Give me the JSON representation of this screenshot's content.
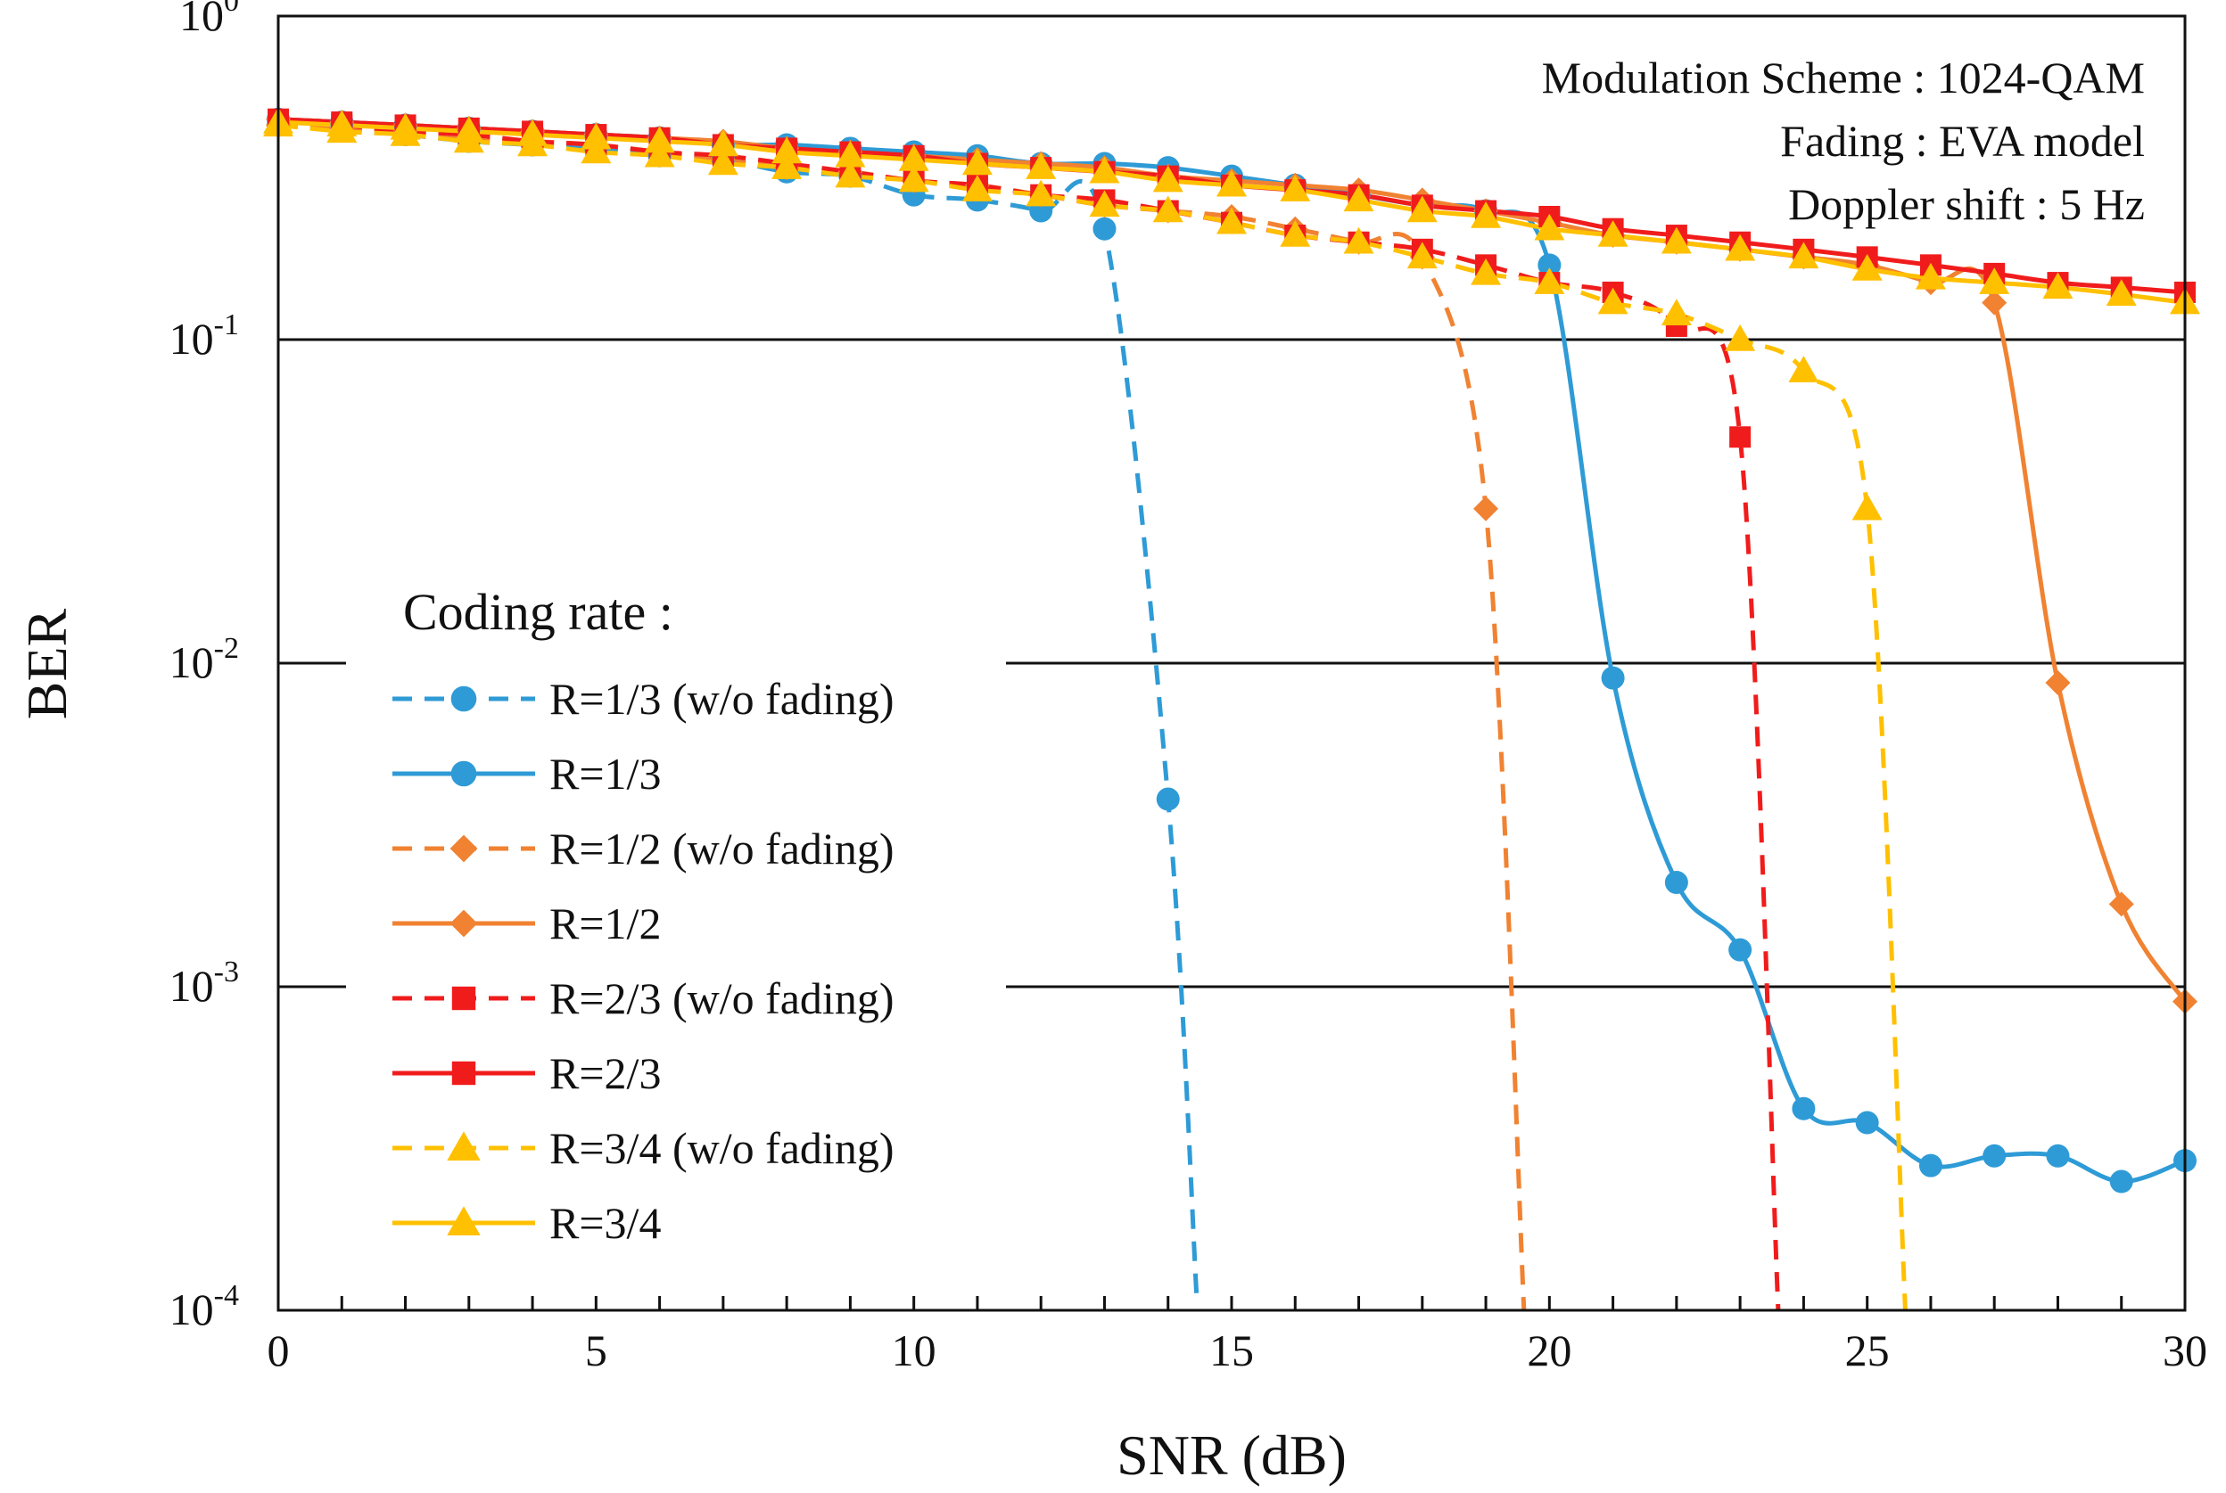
{
  "chart_data": {
    "type": "line",
    "x_scale": "linear",
    "y_scale": "log",
    "xlabel": "SNR (dB)",
    "ylabel": "BER",
    "xlim": [
      0,
      30
    ],
    "ylim": [
      0.0001,
      1
    ],
    "x_ticks": [
      0,
      5,
      10,
      15,
      20,
      25,
      30
    ],
    "y_ticks": [
      {
        "value": 1,
        "base": "10",
        "exp": "0"
      },
      {
        "value": 0.1,
        "base": "10",
        "exp": "-1"
      },
      {
        "value": 0.01,
        "base": "10",
        "exp": "-2"
      },
      {
        "value": 0.001,
        "base": "10",
        "exp": "-3"
      },
      {
        "value": 0.0001,
        "base": "10",
        "exp": "-4"
      }
    ],
    "horizontal_gridlines_at": [
      0.1,
      0.01,
      0.001
    ],
    "annotations": [
      "Modulation Scheme : 1024-QAM",
      "Fading : EVA model",
      "Doppler shift : 5 Hz"
    ],
    "legend": {
      "title": "Coding rate :",
      "placement": "middle-left"
    },
    "series": [
      {
        "name": "R=1/3 (w/o fading)",
        "color": "#2E9BD6",
        "dashed": true,
        "marker": "circle",
        "x": [
          0,
          1,
          2,
          3,
          4,
          5,
          6,
          7,
          8,
          9,
          10,
          11,
          12,
          13,
          14
        ],
        "y": [
          0.46,
          0.45,
          0.43,
          0.41,
          0.4,
          0.39,
          0.37,
          0.36,
          0.33,
          0.32,
          0.28,
          0.27,
          0.25,
          0.22,
          0.0038
        ],
        "tail": [
          14.45,
          0.00011
        ]
      },
      {
        "name": "R=1/3",
        "color": "#2E9BD6",
        "dashed": false,
        "marker": "circle",
        "x": [
          0,
          1,
          2,
          3,
          4,
          5,
          6,
          7,
          8,
          9,
          10,
          11,
          12,
          13,
          14,
          15,
          16,
          17,
          18,
          19,
          20,
          21,
          22,
          23,
          24,
          25,
          26,
          27,
          28,
          29,
          30
        ],
        "y": [
          0.48,
          0.47,
          0.46,
          0.45,
          0.44,
          0.43,
          0.42,
          0.4,
          0.4,
          0.39,
          0.38,
          0.37,
          0.35,
          0.35,
          0.34,
          0.32,
          0.3,
          0.28,
          0.26,
          0.25,
          0.17,
          0.009,
          0.0021,
          0.0013,
          0.00042,
          0.00038,
          0.00028,
          0.0003,
          0.0003,
          0.00025,
          0.00029
        ]
      },
      {
        "name": "R=1/2 (w/o fading)",
        "color": "#F08232",
        "dashed": true,
        "marker": "diamond",
        "x": [
          0,
          1,
          2,
          3,
          4,
          5,
          6,
          7,
          8,
          9,
          10,
          11,
          12,
          13,
          14,
          15,
          16,
          17,
          18,
          19
        ],
        "y": [
          0.46,
          0.45,
          0.44,
          0.42,
          0.41,
          0.4,
          0.38,
          0.36,
          0.34,
          0.33,
          0.31,
          0.3,
          0.28,
          0.26,
          0.25,
          0.24,
          0.22,
          0.2,
          0.18,
          0.03
        ],
        "tail": [
          19.6,
          0.0001
        ]
      },
      {
        "name": "R=1/2",
        "color": "#F08232",
        "dashed": false,
        "marker": "diamond",
        "x": [
          0,
          1,
          2,
          3,
          4,
          5,
          6,
          7,
          8,
          9,
          10,
          11,
          12,
          13,
          14,
          15,
          16,
          17,
          18,
          19,
          20,
          21,
          22,
          23,
          24,
          25,
          26,
          27,
          28,
          29,
          30
        ],
        "y": [
          0.48,
          0.47,
          0.46,
          0.45,
          0.44,
          0.43,
          0.42,
          0.41,
          0.39,
          0.38,
          0.37,
          0.36,
          0.35,
          0.34,
          0.32,
          0.31,
          0.3,
          0.29,
          0.27,
          0.25,
          0.23,
          0.21,
          0.2,
          0.19,
          0.18,
          0.17,
          0.15,
          0.13,
          0.0087,
          0.0018,
          0.0009
        ]
      },
      {
        "name": "R=2/3 (w/o fading)",
        "color": "#F01C1C",
        "dashed": true,
        "marker": "square",
        "x": [
          0,
          1,
          2,
          3,
          4,
          5,
          6,
          7,
          8,
          9,
          10,
          11,
          12,
          13,
          14,
          15,
          16,
          17,
          18,
          19,
          20,
          21,
          22,
          23
        ],
        "y": [
          0.47,
          0.46,
          0.44,
          0.43,
          0.41,
          0.4,
          0.38,
          0.37,
          0.35,
          0.33,
          0.31,
          0.3,
          0.28,
          0.27,
          0.25,
          0.23,
          0.21,
          0.2,
          0.19,
          0.17,
          0.15,
          0.14,
          0.11,
          0.05
        ],
        "tail": [
          23.6,
          0.0001
        ]
      },
      {
        "name": "R=2/3",
        "color": "#F01C1C",
        "dashed": false,
        "marker": "square",
        "x": [
          0,
          1,
          2,
          3,
          4,
          5,
          6,
          7,
          8,
          9,
          10,
          11,
          12,
          13,
          14,
          15,
          16,
          17,
          18,
          19,
          20,
          21,
          22,
          23,
          24,
          25,
          26,
          27,
          28,
          29,
          30
        ],
        "y": [
          0.48,
          0.47,
          0.46,
          0.45,
          0.44,
          0.43,
          0.42,
          0.4,
          0.39,
          0.38,
          0.37,
          0.35,
          0.34,
          0.33,
          0.32,
          0.3,
          0.29,
          0.28,
          0.26,
          0.25,
          0.24,
          0.22,
          0.21,
          0.2,
          0.19,
          0.18,
          0.17,
          0.16,
          0.15,
          0.145,
          0.14
        ]
      },
      {
        "name": "R=3/4 (w/o fading)",
        "color": "#FFC000",
        "dashed": true,
        "marker": "triangle",
        "x": [
          0,
          1,
          2,
          3,
          4,
          5,
          6,
          7,
          8,
          9,
          10,
          11,
          12,
          13,
          14,
          15,
          16,
          17,
          18,
          19,
          20,
          21,
          22,
          23,
          24,
          25
        ],
        "y": [
          0.46,
          0.44,
          0.43,
          0.41,
          0.4,
          0.38,
          0.37,
          0.35,
          0.34,
          0.32,
          0.31,
          0.29,
          0.28,
          0.26,
          0.25,
          0.23,
          0.21,
          0.2,
          0.18,
          0.16,
          0.15,
          0.13,
          0.12,
          0.1,
          0.08,
          0.03
        ],
        "tail": [
          25.6,
          0.0001
        ]
      },
      {
        "name": "R=3/4",
        "color": "#FFC000",
        "dashed": false,
        "marker": "triangle",
        "x": [
          0,
          1,
          2,
          3,
          4,
          5,
          6,
          7,
          8,
          9,
          10,
          11,
          12,
          13,
          14,
          15,
          16,
          17,
          18,
          19,
          20,
          21,
          22,
          23,
          24,
          25,
          26,
          27,
          28,
          29,
          30
        ],
        "y": [
          0.47,
          0.46,
          0.45,
          0.44,
          0.43,
          0.42,
          0.41,
          0.4,
          0.38,
          0.37,
          0.36,
          0.35,
          0.34,
          0.33,
          0.31,
          0.3,
          0.29,
          0.27,
          0.25,
          0.24,
          0.22,
          0.21,
          0.2,
          0.19,
          0.18,
          0.165,
          0.155,
          0.15,
          0.145,
          0.138,
          0.13
        ]
      }
    ]
  }
}
